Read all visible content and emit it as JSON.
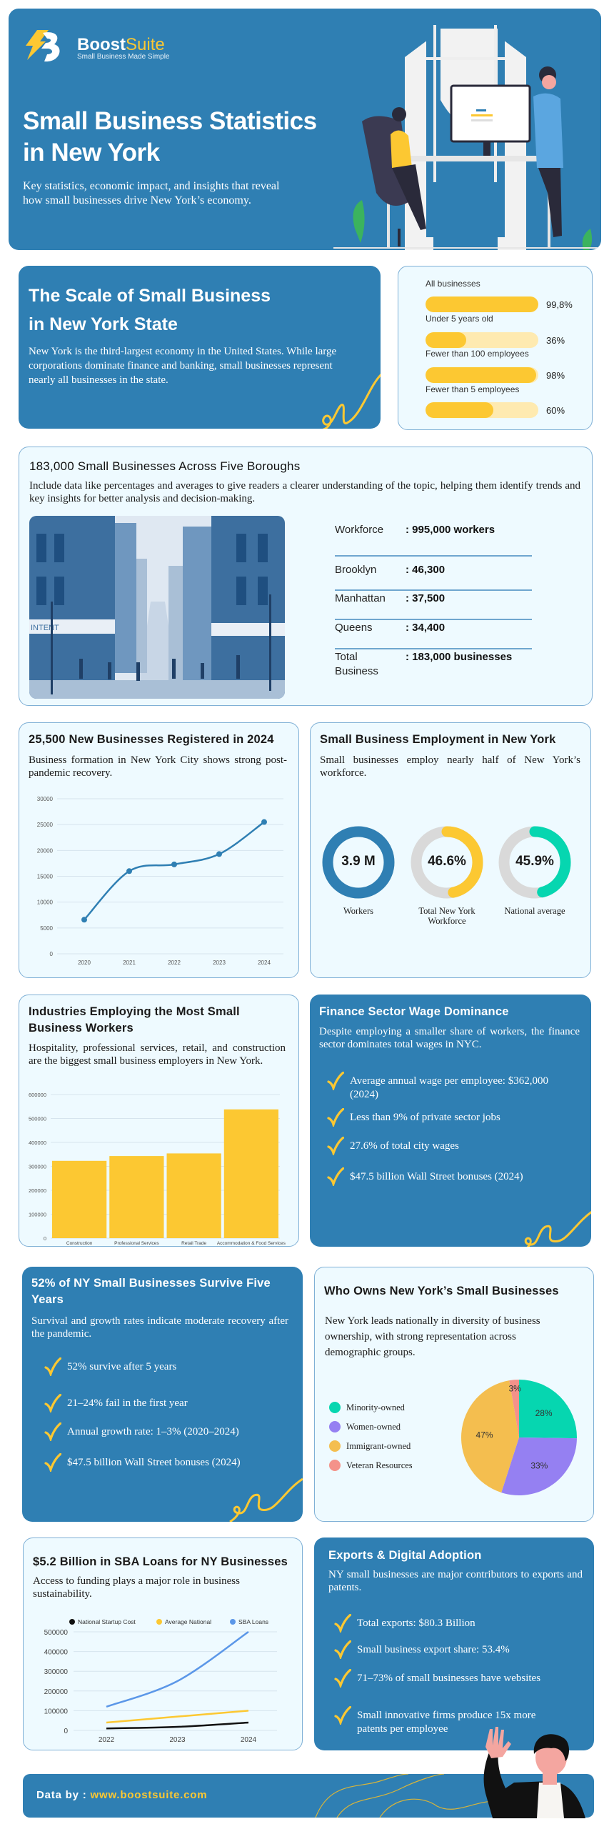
{
  "hero": {
    "brand": {
      "name_bold": "Boost",
      "name_light": "Suite",
      "tagline": "Small Business Made Simple"
    },
    "title_line1": "Small Business Statistics",
    "title_line2": "in New York",
    "subtitle_line1": "Key statistics, economic impact, and insights that reveal",
    "subtitle_line2": "how small businesses drive New York’s economy."
  },
  "scale": {
    "title_line1": "The Scale of Small Business",
    "title_line2": "in New York State",
    "body": "New York is the third-largest economy in the United States. While large corporations dominate finance and banking, small businesses represent nearly all businesses in the state.",
    "bars": [
      {
        "label": "All businesses",
        "value_text": "99,8%",
        "value": 99.8
      },
      {
        "label": "Under 5 years old",
        "value_text": "36%",
        "value": 36
      },
      {
        "label": "Fewer than 100 employees",
        "value_text": "98%",
        "value": 98
      },
      {
        "label": "Fewer than 5 employees",
        "value_text": "60%",
        "value": 60
      }
    ]
  },
  "boroughs": {
    "title": "183,000 Small Businesses Across Five Boroughs",
    "body": "Include data like percentages and averages to give readers a clearer understanding of the topic, helping them identify trends and key insights for better analysis and decision-making.",
    "image_sign": "INTENT",
    "stats": [
      {
        "label": "Workforce",
        "value": ": 995,000 workers"
      },
      {
        "label": "Brooklyn",
        "value": ": 46,300"
      },
      {
        "label": "Manhattan",
        "value": ": 37,500"
      },
      {
        "label": "Queens",
        "value": ": 34,400"
      },
      {
        "label": "Total Business",
        "value": ": 183,000 businesses"
      }
    ]
  },
  "new_businesses": {
    "title": "25,500 New Businesses Registered in 2024",
    "body": "Business formation in New York City shows strong post-pandemic recovery."
  },
  "employment": {
    "title": "Small Business Employment in New York",
    "body": "Small businesses employ nearly half of New York’s workforce.",
    "donuts": [
      {
        "value_text": "3.9 M",
        "label": "Workers",
        "fill": 1.0,
        "color": "#2f7fb3"
      },
      {
        "value_text": "46.6%",
        "label": "Total New York Workforce",
        "fill": 0.466,
        "color": "#fcc832"
      },
      {
        "value_text": "45.9%",
        "label": "National average",
        "fill": 0.459,
        "color": "#06d6b0"
      }
    ]
  },
  "industries": {
    "title": "Industries Employing the Most Small Business Workers",
    "body": "Hospitality, professional services, retail, and construction are the biggest small business employers in New York."
  },
  "finance": {
    "title": "Finance Sector Wage Dominance",
    "body": "Despite employing a smaller share of workers, the finance sector dominates total wages in NYC.",
    "items": [
      "Average annual wage per employee: $362,000 (2024)",
      "Less than 9% of private sector jobs",
      "27.6% of total city wages",
      "$47.5 billion Wall Street bonuses (2024)"
    ]
  },
  "survival": {
    "title": "52% of NY Small Businesses Survive Five Years",
    "body": "Survival and growth rates indicate moderate recovery after the pandemic.",
    "items": [
      "52% survive after 5 years",
      "21–24% fail in the first year",
      "Annual growth rate: 1–3% (2020–2024)",
      "$47.5 billion Wall Street bonuses (2024)"
    ]
  },
  "owners": {
    "title": "Who Owns New York’s Small Businesses",
    "body": "New York leads nationally in diversity of business ownership, with strong representation across demographic groups."
  },
  "sba": {
    "title": "$5.2 Billion in SBA Loans for NY Businesses",
    "body": "Access to funding plays a major role in business sustainability."
  },
  "exports": {
    "title": "Exports & Digital Adoption",
    "body": "NY small businesses are major contributors to exports and patents.",
    "items": [
      "Total exports: $80.3 Billion",
      "Small business export share: 53.4%",
      "71–73% of small businesses have websites",
      "Small innovative firms produce 15x more patents per employee"
    ]
  },
  "footer": {
    "prefix": "Data by :",
    "url": "www.boostsuite.com"
  },
  "colors": {
    "brand_blue": "#2f7fb3",
    "accent_yellow": "#fcc832",
    "light_bg": "#eefaff"
  },
  "chart_data": [
    {
      "type": "line",
      "categories": [
        "2020",
        "2021",
        "2022",
        "2023",
        "2024"
      ],
      "series": [
        {
          "values": [
            6600,
            16000,
            17300,
            19300,
            25500
          ],
          "color": "#2f7fb3"
        }
      ],
      "ylim": [
        0,
        30000
      ],
      "yticks": [
        "0",
        "5000",
        "10000",
        "15000",
        "20000",
        "25000",
        "30000"
      ],
      "grid": true
    },
    {
      "type": "bar",
      "categories": [
        "Construction",
        "Professional Services",
        "Retail Trade",
        "Accommodation & Food Services"
      ],
      "values": [
        323000,
        343000,
        354000,
        538000
      ],
      "ylim": [
        0,
        600000
      ],
      "yticks": [
        "0",
        "100000",
        "200000",
        "300000",
        "400000",
        "500000",
        "600000"
      ],
      "color": "#fcc832",
      "grid": true
    },
    {
      "type": "pie",
      "slices": [
        {
          "name": "Minority-owned",
          "value": 28,
          "label": "28%",
          "color": "#06d6b0"
        },
        {
          "name": "Women-owned",
          "value": 33,
          "label": "33%",
          "color": "#9580f2"
        },
        {
          "name": "Immigrant-owned",
          "value": 47,
          "label": "47%",
          "color": "#f4be4f"
        },
        {
          "name": "Veteran Resources",
          "value": 3,
          "label": "3%",
          "color": "#f4928a"
        }
      ],
      "legend": "left"
    },
    {
      "type": "line",
      "categories": [
        "2022",
        "2023",
        "2024"
      ],
      "series": [
        {
          "name": "National Startup Cost",
          "values": [
            10000,
            18000,
            40000
          ],
          "color": "#111111"
        },
        {
          "name": "Average National",
          "values": [
            40000,
            70000,
            100000
          ],
          "color": "#fcc832"
        },
        {
          "name": "SBA Loans",
          "values": [
            120000,
            250000,
            500000
          ],
          "color": "#5b97e8"
        }
      ],
      "ylim": [
        0,
        500000
      ],
      "yticks": [
        "0",
        "100000",
        "200000",
        "300000",
        "400000",
        "500000"
      ],
      "legend": "top",
      "grid": true
    }
  ]
}
